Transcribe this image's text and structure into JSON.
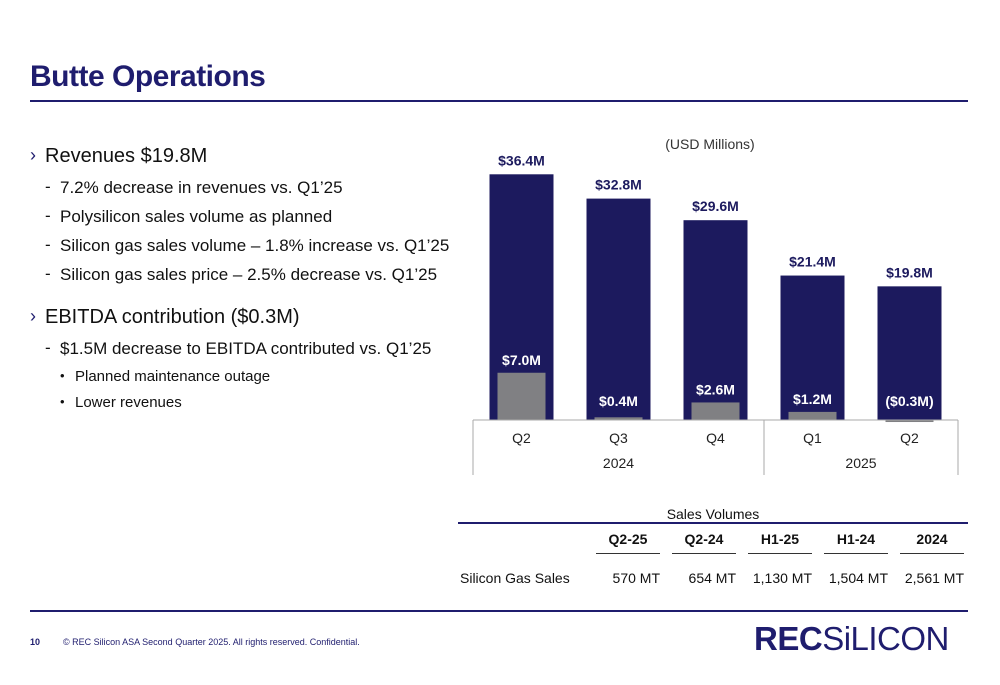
{
  "title": "Butte Operations",
  "bullets": {
    "revenues": {
      "heading": "Revenues $19.8M",
      "items": [
        "7.2% decrease in revenues vs. Q1’25",
        "Polysilicon sales volume as planned",
        "Silicon gas sales volume –  1.8% increase vs. Q1’25",
        "Silicon gas sales price –  2.5% decrease vs. Q1’25"
      ]
    },
    "ebitda": {
      "heading": "EBITDA contribution ($0.3M)",
      "sub": "$1.5M decrease to EBITDA contributed vs. Q1’25",
      "items": [
        "Planned maintenance outage",
        "Lower revenues"
      ]
    },
    "marker_l1": "›",
    "marker_l2": "-",
    "marker_l3": "•"
  },
  "chart_data": {
    "type": "bar",
    "unit_note": "(USD Millions)",
    "categories": [
      "Q2",
      "Q3",
      "Q4",
      "Q1",
      "Q2"
    ],
    "groups": [
      {
        "label": "2024",
        "span": [
          0,
          2
        ]
      },
      {
        "label": "2025",
        "span": [
          3,
          4
        ]
      }
    ],
    "series": [
      {
        "values": [
          36.4,
          32.8,
          29.6,
          21.4,
          19.8
        ],
        "data_labels": [
          "$36.4M",
          "$32.8M",
          "$29.6M",
          "$21.4M",
          "$19.8M"
        ],
        "color": "#1c1a5e"
      },
      {
        "values": [
          7.0,
          0.4,
          2.6,
          1.2,
          -0.3
        ],
        "data_labels": [
          "$7.0M",
          "$0.4M",
          "$2.6M",
          "$1.2M",
          "($0.3M)"
        ],
        "color": "#808083"
      }
    ],
    "ylim": [
      0,
      40
    ]
  },
  "sales_volumes": {
    "title": "Sales Volumes",
    "columns": [
      "Q2-25",
      "Q2-24",
      "H1-25",
      "H1-24",
      "2024"
    ],
    "rows": [
      {
        "label": "Silicon Gas Sales",
        "values": [
          "570 MT",
          "654 MT",
          "1,130 MT",
          "1,504 MT",
          "2,561 MT"
        ]
      }
    ]
  },
  "footer": {
    "page_number": "10",
    "copyright": "©  REC Silicon ASA Second Quarter 2025. All rights reserved. Confidential.",
    "logo_rec": "REC",
    "logo_silicon": "SiLICON"
  }
}
